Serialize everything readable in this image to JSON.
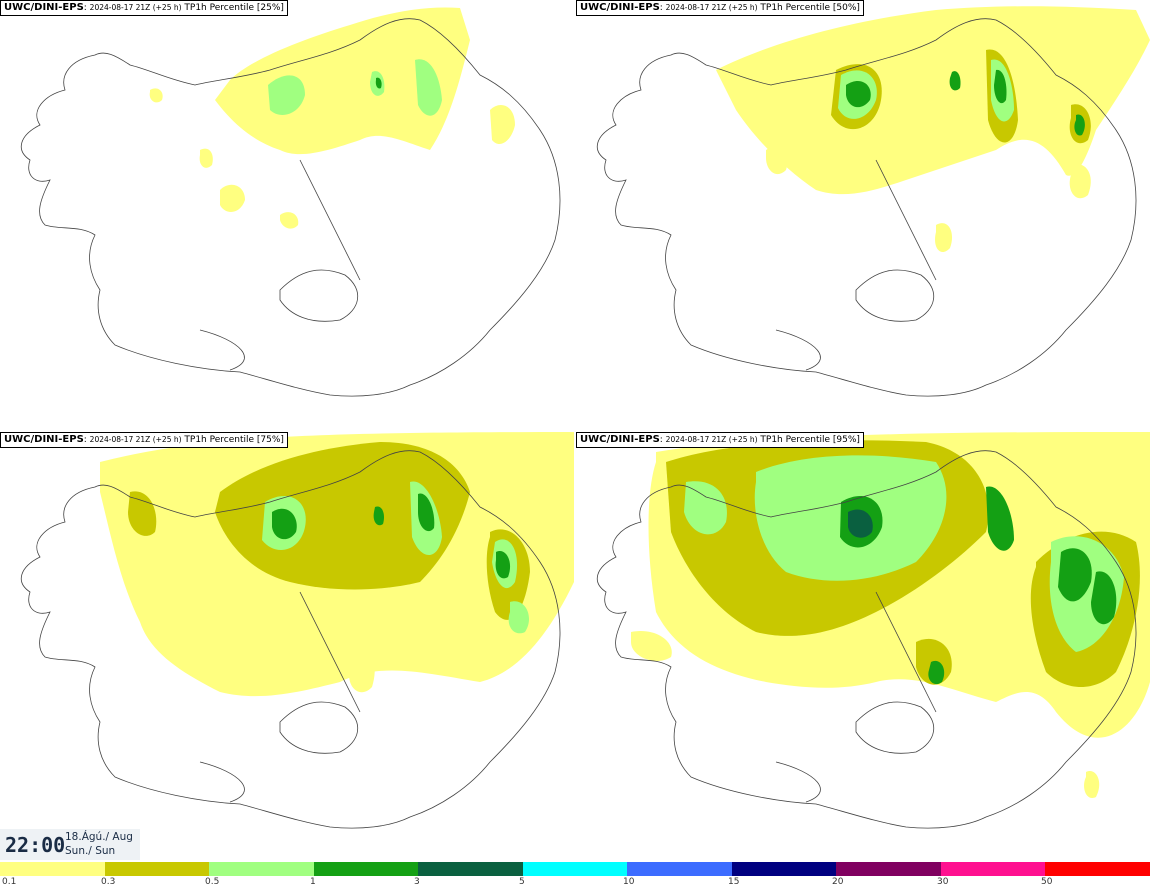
{
  "panels": [
    {
      "source": "UWC/DINI-EPS",
      "run": "2024-08-17 21Z (+25 h)",
      "title": "TP1h Percentile [25%]"
    },
    {
      "source": "UWC/DINI-EPS",
      "run": "2024-08-17 21Z (+25 h)",
      "title": "TP1h Percentile [50%]"
    },
    {
      "source": "UWC/DINI-EPS",
      "run": "2024-08-17 21Z (+25 h)",
      "title": "TP1h Percentile [75%]"
    },
    {
      "source": "UWC/DINI-EPS",
      "run": "2024-08-17 21Z (+25 h)",
      "title": "TP1h Percentile [95%]"
    }
  ],
  "valid_time": {
    "time": "22:00",
    "date": "18.Ágú./ Aug",
    "day": "Sun./ Sun"
  },
  "legend": {
    "labels": [
      "0.1",
      "0.3",
      "0.5",
      "1",
      "3",
      "5",
      "10",
      "15",
      "20",
      "30",
      "50"
    ],
    "colors": [
      "#ffff80",
      "#c8c800",
      "#a0ff80",
      "#14a014",
      "#0a6040",
      "#00ffff",
      "#3c6cff",
      "#000080",
      "#800060",
      "#ff1090",
      "#ff0000"
    ]
  }
}
